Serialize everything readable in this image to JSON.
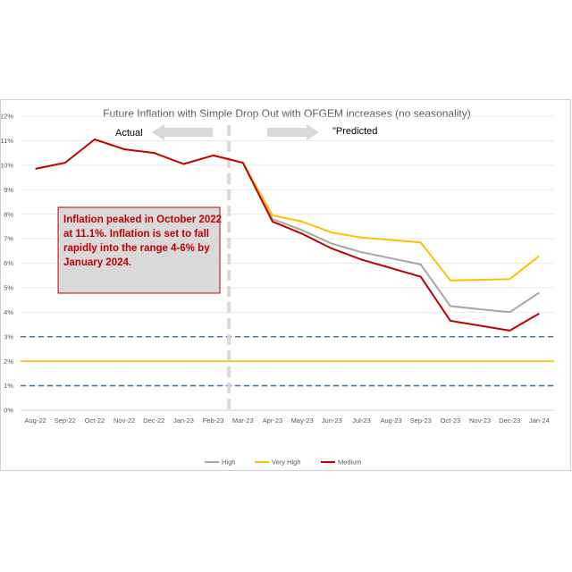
{
  "chart_data": {
    "type": "line",
    "title": "Future Inflation with Simple Drop Out with OFGEM  increases (no seasonality)",
    "categories": [
      "Aug-22",
      "Sep-22",
      "Oct-22",
      "Nov-22",
      "Dec-22",
      "Jan-23",
      "Feb-23",
      "Mar-23",
      "Apr-23",
      "May-23",
      "Jun-23",
      "Jul-23",
      "Aug-23",
      "Sep-23",
      "Oct-23",
      "Nov-23",
      "Dec-23",
      "Jan-24"
    ],
    "y_ticks": [
      "0%",
      "1%",
      "2%",
      "3%",
      "4%",
      "5%",
      "6%",
      "7%",
      "8%",
      "9%",
      "10%",
      "11%",
      "12%"
    ],
    "ylim": [
      0,
      12
    ],
    "grid": true,
    "legend_position": "bottom",
    "series": [
      {
        "name": "High",
        "color": "#a6a6a6",
        "values": [
          null,
          null,
          null,
          null,
          null,
          null,
          null,
          10.1,
          7.8,
          7.35,
          6.8,
          6.45,
          6.2,
          5.95,
          4.25,
          4.12,
          4.0,
          4.8
        ]
      },
      {
        "name": "Very High",
        "color": "#ffc000",
        "values": [
          null,
          null,
          null,
          null,
          null,
          null,
          null,
          10.1,
          7.95,
          7.7,
          7.25,
          7.05,
          6.95,
          6.85,
          5.3,
          5.32,
          5.35,
          6.3
        ]
      },
      {
        "name": "Medium",
        "color": "#c00000",
        "values": [
          9.85,
          10.1,
          11.05,
          10.65,
          10.5,
          10.05,
          10.4,
          10.1,
          7.7,
          7.2,
          6.6,
          6.15,
          5.8,
          5.45,
          3.65,
          3.45,
          3.25,
          3.95
        ]
      }
    ],
    "reference_lines": [
      {
        "value": 3,
        "color": "#4472c4",
        "style": "dashed"
      },
      {
        "value": 2,
        "color": "#ffc000",
        "style": "solid"
      },
      {
        "value": 1,
        "color": "#4472c4",
        "style": "dashed"
      }
    ],
    "divider_category": "Mar-23",
    "annotations": {
      "actual_label": "Actual",
      "predicted_label": "\"Predicted",
      "callout_lines": [
        "Inflation peaked in October 2022",
        "at 11.1%. Inflation is set to fall",
        "rapidly into the range 4-6% by",
        "January 2024."
      ]
    }
  }
}
